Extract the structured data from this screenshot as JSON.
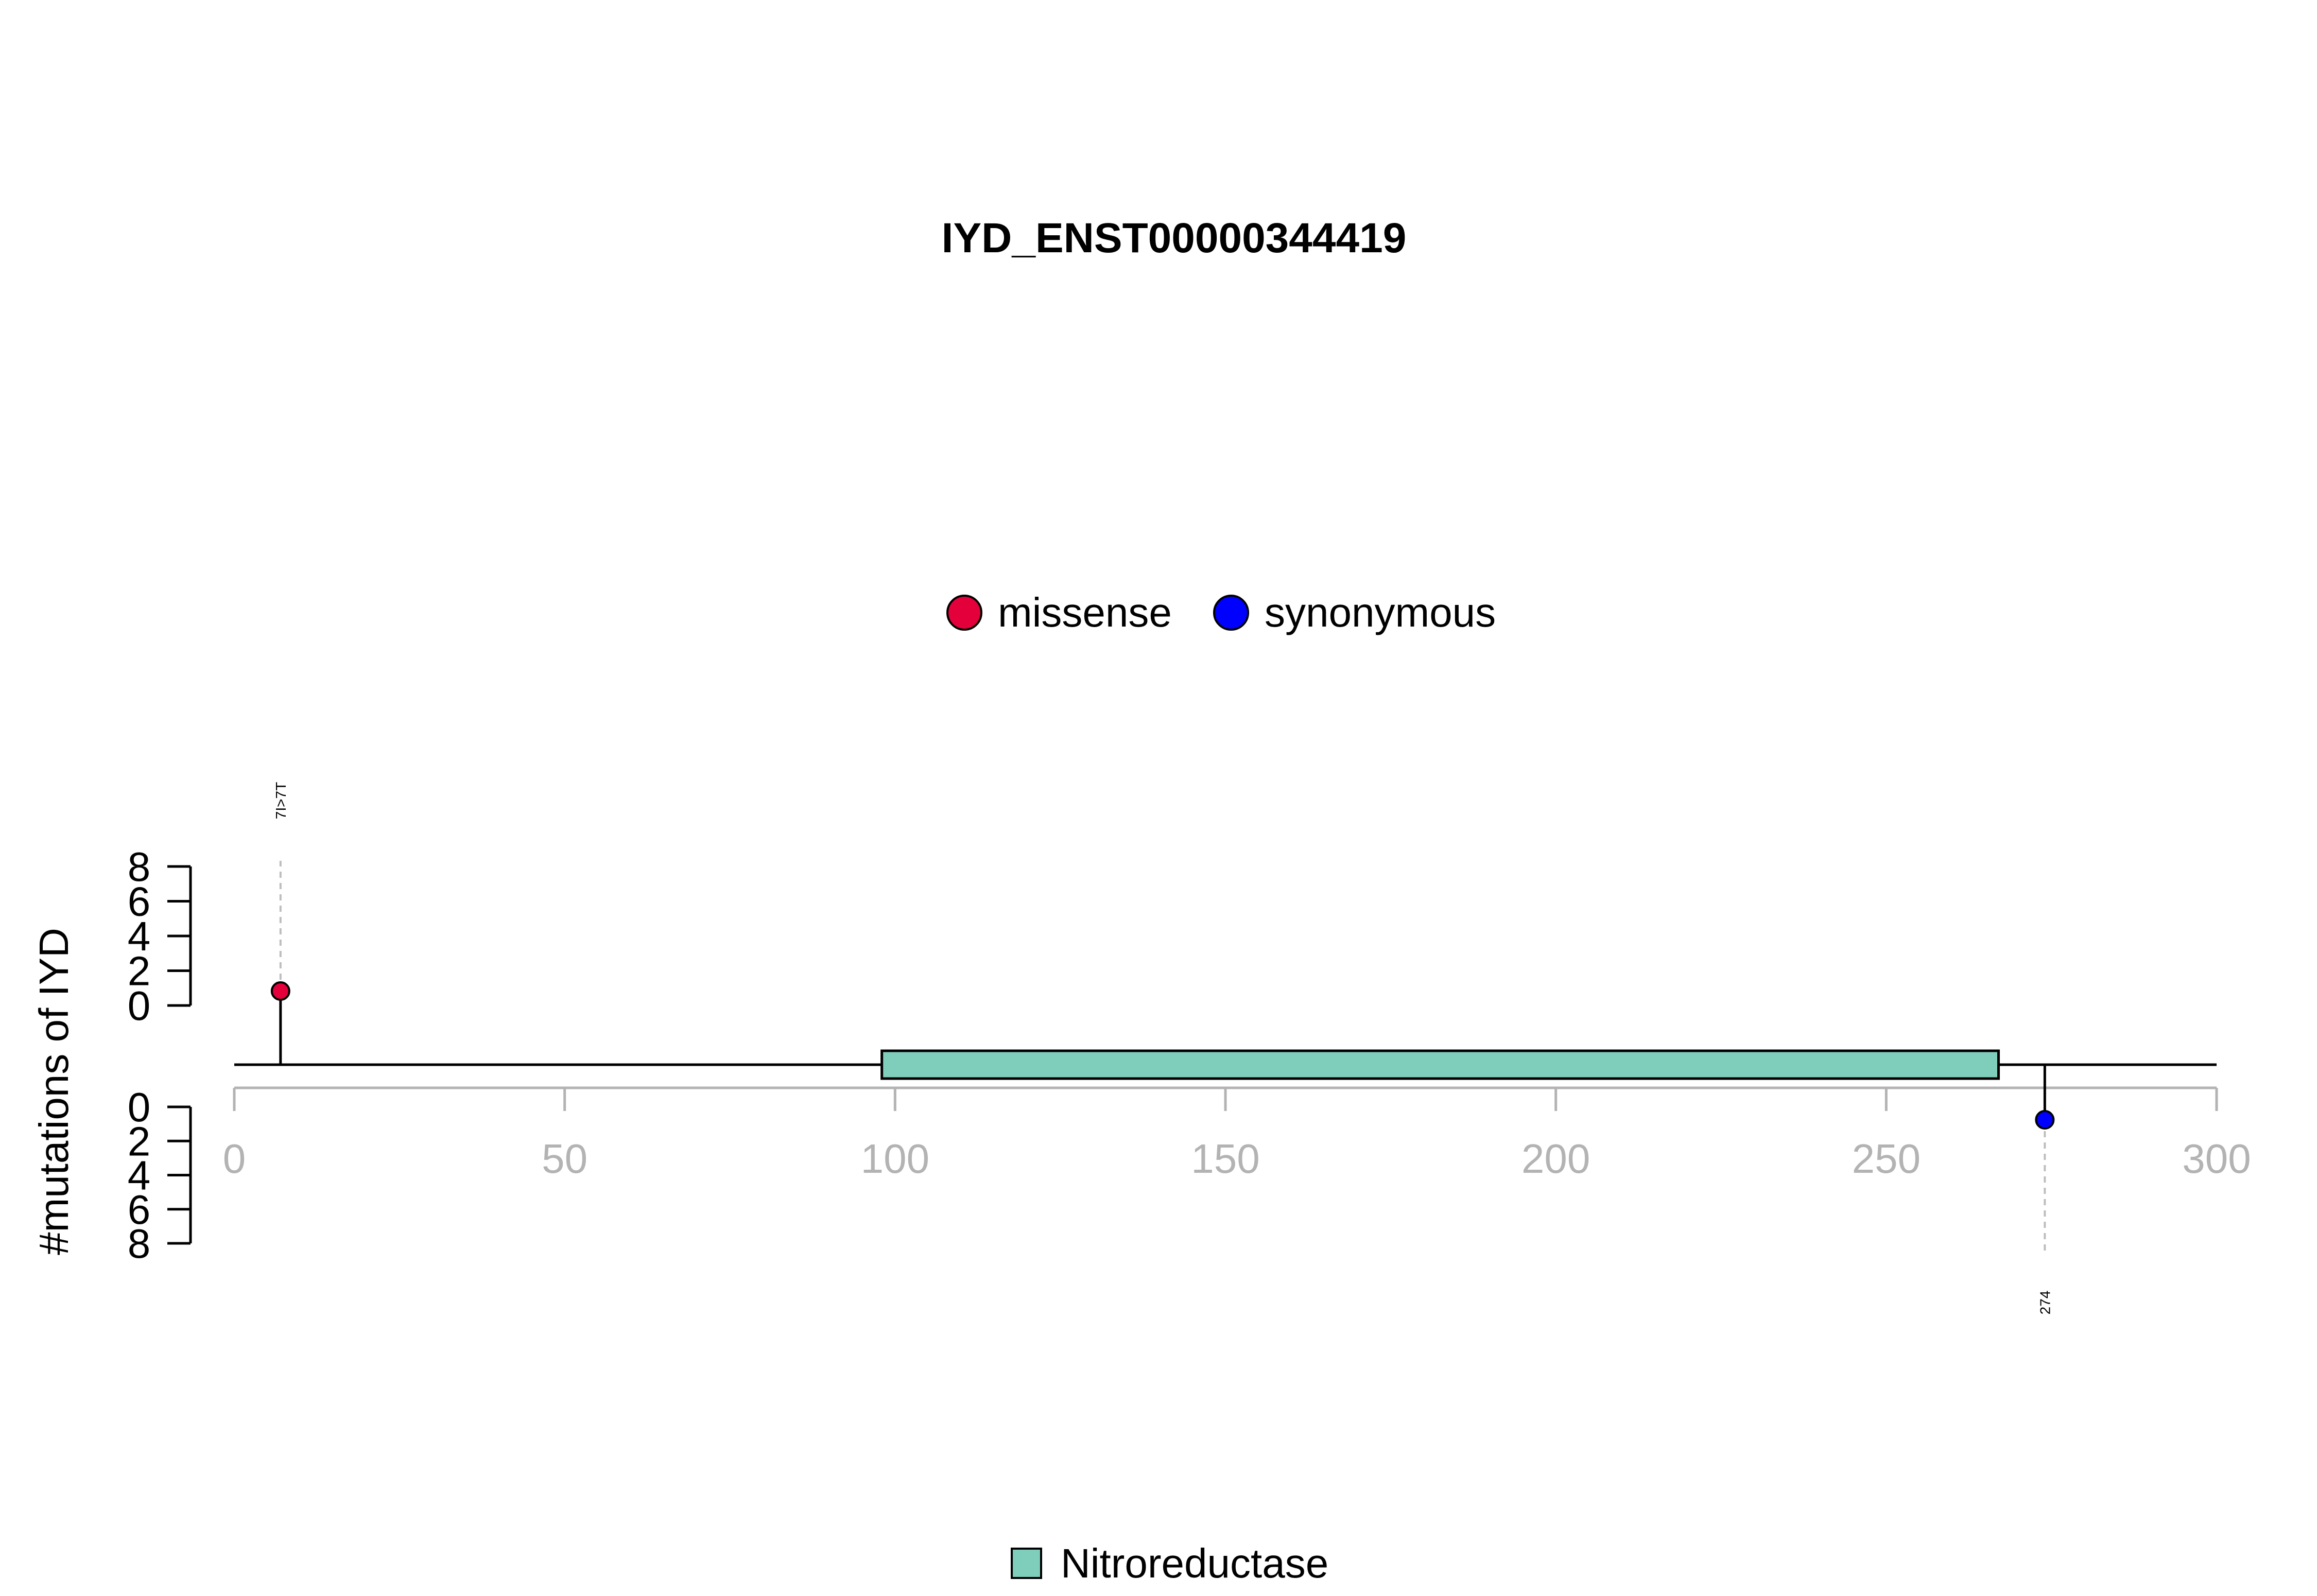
{
  "chart_data": {
    "type": "lollipop",
    "title": "IYD_ENST00000344419",
    "ylabel": "#mutations of IYD",
    "xlim": [
      0,
      300
    ],
    "x_ticks": [
      "0",
      "50",
      "100",
      "150",
      "200",
      "250",
      "300"
    ],
    "x_tick_values": [
      0,
      50,
      100,
      150,
      200,
      250,
      300
    ],
    "ylim": [
      0,
      8
    ],
    "y_ticks": [
      "0",
      "2",
      "4",
      "6",
      "8"
    ],
    "y_tick_values": [
      0,
      2,
      4,
      6,
      8
    ],
    "protein_length": 300,
    "domains": [
      {
        "name": "Nitroreductase",
        "start": 98,
        "end": 267,
        "color": "#7fcdbb"
      }
    ],
    "legend": [
      {
        "name": "missense",
        "color": "#e4003a"
      },
      {
        "name": "synonymous",
        "color": "#0000ff"
      }
    ],
    "domain_legend": [
      {
        "name": "Nitroreductase",
        "color": "#7fcdbb"
      }
    ],
    "mutations": [
      {
        "position": 7,
        "label": "7I>7T",
        "type": "missense",
        "count": 1,
        "side": "top",
        "color": "#e4003a"
      },
      {
        "position": 274,
        "label": "274",
        "type": "synonymous",
        "count": 1,
        "side": "bottom",
        "color": "#0000ff"
      }
    ]
  }
}
